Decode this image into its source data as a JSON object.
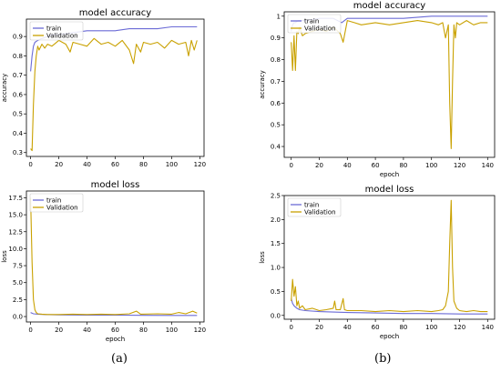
{
  "colors": {
    "train": "#6b6bd6",
    "validation": "#c9a100",
    "axis": "#000000"
  },
  "chart_data": [
    {
      "id": "a_acc",
      "type": "line",
      "title": "model accuracy",
      "xlabel": "",
      "ylabel": "accuracy",
      "xlim": [
        -3,
        123
      ],
      "ylim": [
        0.28,
        0.99
      ],
      "xticks": [
        0,
        20,
        40,
        60,
        80,
        100,
        120
      ],
      "yticks": [
        0.3,
        0.4,
        0.5,
        0.6,
        0.7,
        0.8,
        0.9
      ],
      "legend": "upper-left",
      "series": [
        {
          "name": "train",
          "x": [
            0,
            1,
            2,
            3,
            5,
            8,
            12,
            16,
            20,
            30,
            40,
            50,
            60,
            70,
            80,
            90,
            100,
            110,
            115,
            118
          ],
          "y": [
            0.72,
            0.8,
            0.85,
            0.87,
            0.88,
            0.89,
            0.9,
            0.91,
            0.91,
            0.92,
            0.93,
            0.93,
            0.93,
            0.94,
            0.94,
            0.94,
            0.95,
            0.95,
            0.95,
            0.95
          ]
        },
        {
          "name": "Validation",
          "x": [
            0,
            1,
            2,
            3,
            4,
            5,
            6,
            8,
            10,
            12,
            15,
            20,
            25,
            28,
            30,
            35,
            40,
            45,
            50,
            55,
            60,
            65,
            70,
            73,
            75,
            78,
            80,
            85,
            90,
            95,
            100,
            105,
            110,
            112,
            114,
            116,
            118
          ],
          "y": [
            0.32,
            0.31,
            0.55,
            0.72,
            0.8,
            0.85,
            0.83,
            0.86,
            0.84,
            0.86,
            0.85,
            0.88,
            0.86,
            0.82,
            0.87,
            0.86,
            0.85,
            0.89,
            0.86,
            0.87,
            0.85,
            0.88,
            0.83,
            0.76,
            0.86,
            0.82,
            0.87,
            0.86,
            0.87,
            0.84,
            0.88,
            0.86,
            0.87,
            0.8,
            0.88,
            0.83,
            0.88
          ]
        }
      ]
    },
    {
      "id": "a_loss",
      "type": "line",
      "title": "model loss",
      "xlabel": "epoch",
      "ylabel": "loss",
      "xlim": [
        -3,
        123
      ],
      "ylim": [
        -0.8,
        18.5
      ],
      "xticks": [
        0,
        20,
        40,
        60,
        80,
        100,
        120
      ],
      "yticks": [
        0.0,
        2.5,
        5.0,
        7.5,
        10.0,
        12.5,
        15.0,
        17.5
      ],
      "ytick_labels": [
        "0.0",
        "2.5",
        "5.0",
        "7.5",
        "10.0",
        "12.5",
        "15.0",
        "17.5"
      ],
      "legend": "upper-left",
      "series": [
        {
          "name": "train",
          "x": [
            0,
            2,
            5,
            10,
            20,
            40,
            60,
            80,
            100,
            118
          ],
          "y": [
            0.6,
            0.4,
            0.35,
            0.3,
            0.25,
            0.22,
            0.2,
            0.18,
            0.17,
            0.16
          ]
        },
        {
          "name": "Validation",
          "x": [
            0,
            1,
            2,
            3,
            4,
            5,
            8,
            12,
            20,
            30,
            40,
            50,
            60,
            70,
            75,
            78,
            90,
            100,
            105,
            110,
            115,
            118
          ],
          "y": [
            17.5,
            8.0,
            2.5,
            1.0,
            0.6,
            0.4,
            0.35,
            0.3,
            0.3,
            0.35,
            0.3,
            0.35,
            0.3,
            0.4,
            0.8,
            0.35,
            0.4,
            0.35,
            0.6,
            0.4,
            0.8,
            0.5
          ]
        }
      ]
    },
    {
      "id": "b_acc",
      "type": "line",
      "title": "model accuracy",
      "xlabel": "epoch",
      "ylabel": "accuracy",
      "xlim": [
        -5,
        145
      ],
      "ylim": [
        0.35,
        1.02
      ],
      "xticks": [
        0,
        20,
        40,
        60,
        80,
        100,
        120,
        140
      ],
      "yticks": [
        0.4,
        0.5,
        0.6,
        0.7,
        0.8,
        0.9,
        1.0
      ],
      "legend": "upper-left",
      "series": [
        {
          "name": "train",
          "x": [
            0,
            1,
            2,
            3,
            5,
            10,
            20,
            30,
            36,
            40,
            50,
            60,
            80,
            100,
            120,
            140
          ],
          "y": [
            0.93,
            0.96,
            0.97,
            0.97,
            0.98,
            0.98,
            0.99,
            0.99,
            0.97,
            0.99,
            0.99,
            0.99,
            0.99,
            1.0,
            1.0,
            1.0
          ]
        },
        {
          "name": "Validation",
          "x": [
            0,
            1,
            2,
            3,
            4,
            5,
            6,
            8,
            10,
            15,
            20,
            25,
            30,
            35,
            37,
            40,
            45,
            50,
            60,
            70,
            80,
            90,
            100,
            105,
            108,
            110,
            112,
            113,
            114,
            115,
            116,
            117,
            118,
            120,
            125,
            130,
            135,
            140
          ],
          "y": [
            0.88,
            0.75,
            0.91,
            0.75,
            0.93,
            0.92,
            0.95,
            0.91,
            0.92,
            0.93,
            0.94,
            0.93,
            0.95,
            0.92,
            0.88,
            0.98,
            0.97,
            0.96,
            0.97,
            0.96,
            0.97,
            0.98,
            0.97,
            0.96,
            0.97,
            0.9,
            0.96,
            0.6,
            0.39,
            0.7,
            0.96,
            0.9,
            0.97,
            0.96,
            0.98,
            0.96,
            0.97,
            0.97
          ]
        }
      ]
    },
    {
      "id": "b_loss",
      "type": "line",
      "title": "model loss",
      "xlabel": "epoch",
      "ylabel": "loss",
      "xlim": [
        -5,
        145
      ],
      "ylim": [
        -0.08,
        2.5
      ],
      "xticks": [
        0,
        20,
        40,
        60,
        80,
        100,
        120,
        140
      ],
      "yticks": [
        0.0,
        0.5,
        1.0,
        1.5,
        2.0,
        2.5
      ],
      "ytick_labels": [
        "0.0",
        "0.5",
        "1.0",
        "1.5",
        "2.0",
        "2.5"
      ],
      "legend": "upper-left",
      "series": [
        {
          "name": "train",
          "x": [
            0,
            1,
            2,
            4,
            6,
            10,
            20,
            30,
            40,
            60,
            80,
            100,
            120,
            140
          ],
          "y": [
            0.35,
            0.25,
            0.2,
            0.15,
            0.12,
            0.1,
            0.08,
            0.07,
            0.06,
            0.05,
            0.04,
            0.04,
            0.03,
            0.03
          ]
        },
        {
          "name": "Validation",
          "x": [
            0,
            1,
            2,
            3,
            4,
            5,
            6,
            8,
            10,
            15,
            20,
            25,
            30,
            31,
            32,
            35,
            37,
            38,
            40,
            50,
            60,
            70,
            80,
            90,
            100,
            105,
            108,
            110,
            112,
            113,
            114,
            115,
            116,
            118,
            120,
            125,
            130,
            135,
            140
          ],
          "y": [
            0.3,
            0.75,
            0.4,
            0.6,
            0.2,
            0.3,
            0.15,
            0.2,
            0.12,
            0.15,
            0.1,
            0.12,
            0.15,
            0.3,
            0.12,
            0.12,
            0.35,
            0.12,
            0.1,
            0.1,
            0.08,
            0.1,
            0.08,
            0.1,
            0.08,
            0.1,
            0.12,
            0.2,
            0.5,
            1.5,
            2.4,
            1.0,
            0.3,
            0.15,
            0.1,
            0.08,
            0.1,
            0.08,
            0.08
          ]
        }
      ]
    }
  ],
  "captions": {
    "left": "(a)",
    "right": "(b)"
  }
}
